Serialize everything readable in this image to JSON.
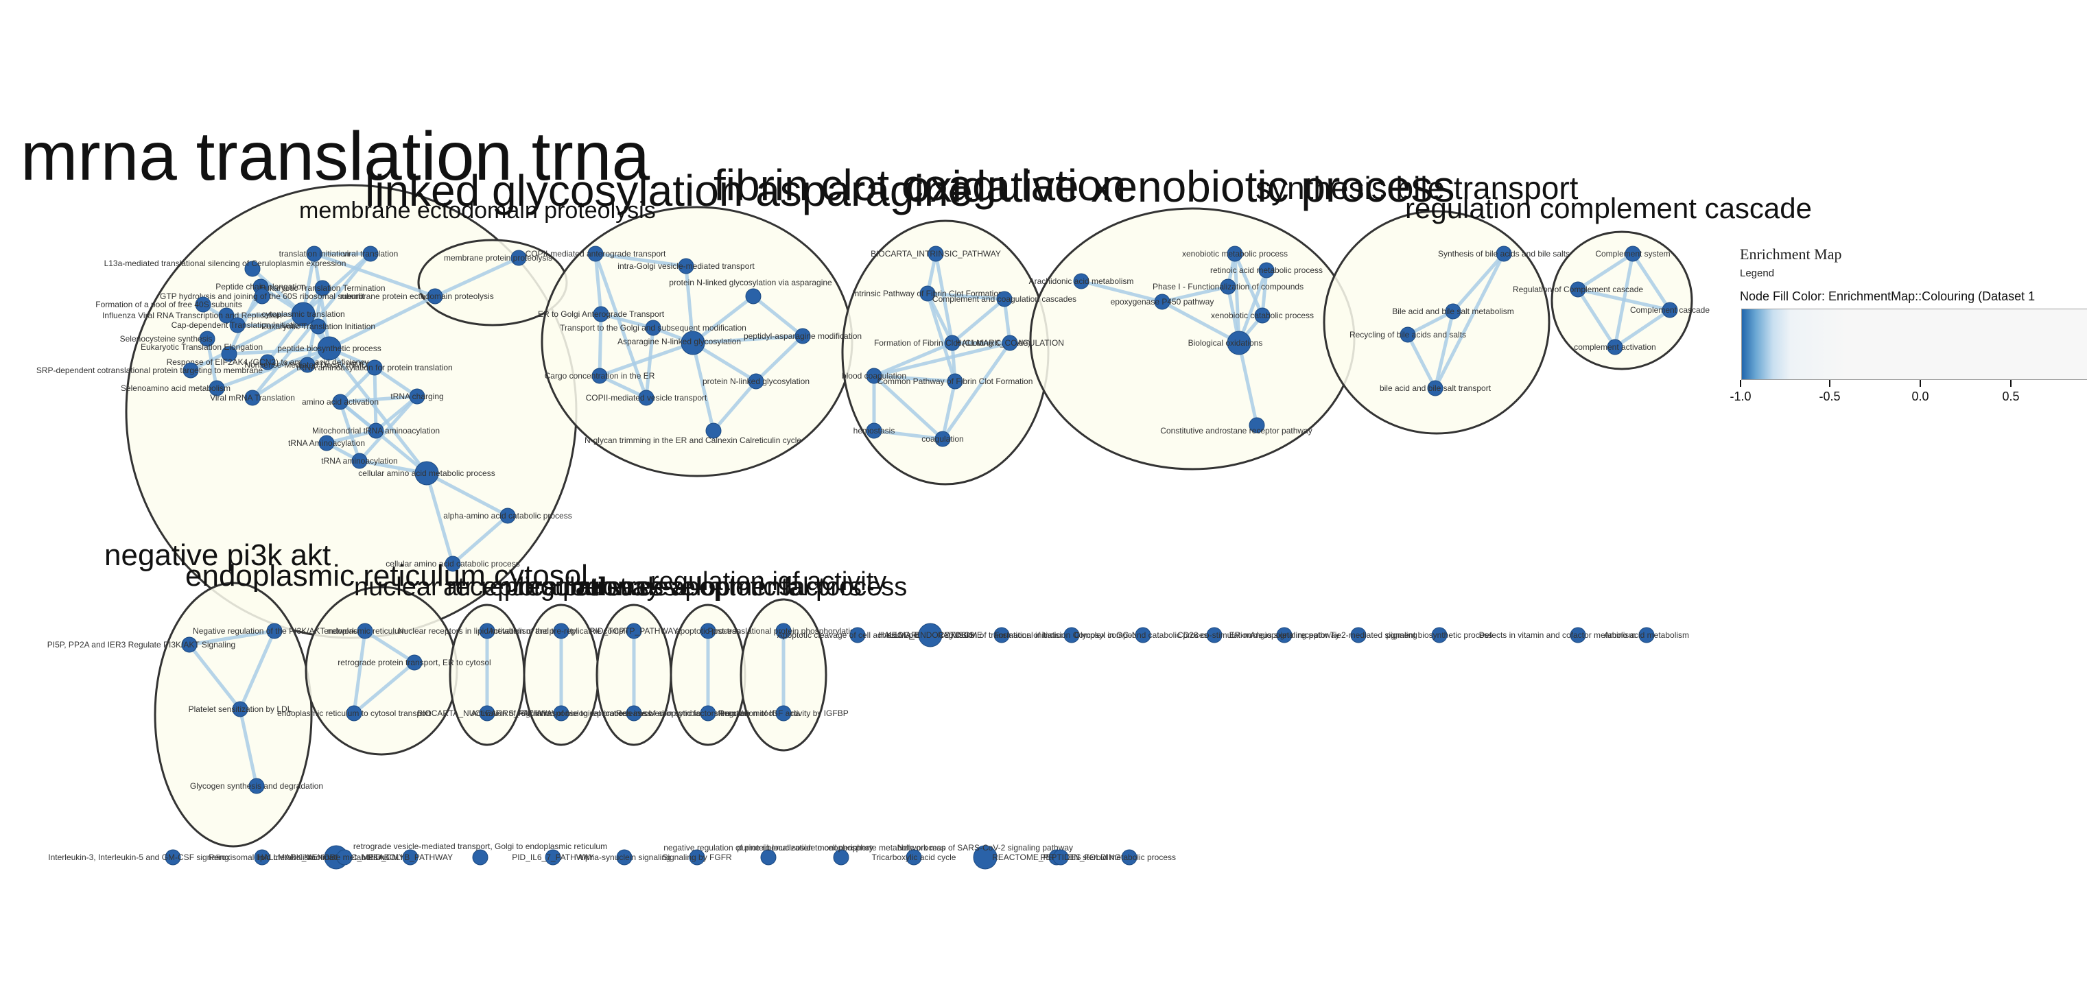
{
  "legend": {
    "title": "Enrichment Map",
    "subtitle": "Legend",
    "fill_label": "Node Fill Color:  EnrichmentMap::Colouring (Dataset 1",
    "ticks": [
      "-1.0",
      "-0.5",
      "0.0",
      "0.5"
    ]
  },
  "clusters": [
    {
      "id": "c1",
      "label": "mrna translation trna"
    },
    {
      "id": "c2",
      "label": "membrane ectodomain proteolysis"
    },
    {
      "id": "c3",
      "label": "linked glycosylation asparagine"
    },
    {
      "id": "c4",
      "label": "fibrin clot coagulation"
    },
    {
      "id": "c5",
      "label": "oxidative xenobiotic process"
    },
    {
      "id": "c6",
      "label": "synthesis bile transport"
    },
    {
      "id": "c7",
      "label": "regulation complement cascade"
    },
    {
      "id": "c8",
      "label": "negative pi3k akt"
    },
    {
      "id": "c9",
      "label": "endoplasmic reticulum cytosol"
    },
    {
      "id": "c10",
      "label": "nuclear receptors pathway"
    },
    {
      "id": "c11",
      "label": "atr replication stress"
    },
    {
      "id": "c12",
      "label": "regulation developmental process"
    },
    {
      "id": "c13",
      "label": "release apoptotic factors"
    },
    {
      "id": "c14",
      "label": "regulation igf activity"
    }
  ],
  "nodes": [
    {
      "id": "n1",
      "label": "translation initiation",
      "c": "c1",
      "s": 1
    },
    {
      "id": "n2",
      "label": "viral translation",
      "c": "c1",
      "s": 1
    },
    {
      "id": "n3",
      "label": "L13a-mediated translational silencing of Ceruloplasmin expression",
      "c": "c1",
      "s": 1
    },
    {
      "id": "n4",
      "label": "Peptide chain elongation",
      "c": "c1",
      "s": 1
    },
    {
      "id": "n5",
      "label": "Eukaryotic Translation Termination",
      "c": "c1",
      "s": 1
    },
    {
      "id": "n6",
      "label": "GTP hydrolysis and joining of the 60S ribosomal subunit",
      "c": "c1",
      "s": 1
    },
    {
      "id": "n7",
      "label": "Formation of a pool of free 40S subunits",
      "c": "c1",
      "s": 1
    },
    {
      "id": "n8",
      "label": "Influenza Viral RNA Transcription and Replication",
      "c": "c1",
      "s": 1
    },
    {
      "id": "n9",
      "label": "cytoplasmic translation",
      "c": "c1",
      "s": 2
    },
    {
      "id": "n10",
      "label": "Cap-dependent Translation Initiation",
      "c": "c1",
      "s": 1
    },
    {
      "id": "n11",
      "label": "Eukaryotic Translation Initiation",
      "c": "c1",
      "s": 1
    },
    {
      "id": "n12",
      "label": "Selenocysteine synthesis",
      "c": "c1",
      "s": 1
    },
    {
      "id": "n13",
      "label": "peptide biosynthetic process",
      "c": "c1",
      "s": 2
    },
    {
      "id": "n14",
      "label": "Eukaryotic Translation Elongation",
      "c": "c1",
      "s": 1
    },
    {
      "id": "n15",
      "label": "Response of EIF2AK4 (GCN2) to amino acid deficiency",
      "c": "c1",
      "s": 1
    },
    {
      "id": "n16",
      "label": "SRP-dependent cotranslational protein targeting to membrane",
      "c": "c1",
      "s": 1
    },
    {
      "id": "n17",
      "label": "Nonsense-Mediated Decay (NMD)",
      "c": "c1",
      "s": 1
    },
    {
      "id": "n18",
      "label": "Selenoamino acid metabolism",
      "c": "c1",
      "s": 1
    },
    {
      "id": "n19",
      "label": "Viral mRNA Translation",
      "c": "c1",
      "s": 1
    },
    {
      "id": "n20",
      "label": "tRNA aminoacylation for protein translation",
      "c": "c1",
      "s": 1
    },
    {
      "id": "n21",
      "label": "amino acid activation",
      "c": "c1",
      "s": 1
    },
    {
      "id": "n22",
      "label": "tRNA charging",
      "c": "c1",
      "s": 1
    },
    {
      "id": "n23",
      "label": "Mitochondrial tRNA aminoacylation",
      "c": "c1",
      "s": 1
    },
    {
      "id": "n24",
      "label": "tRNA Aminoacylation",
      "c": "c1",
      "s": 1
    },
    {
      "id": "n25",
      "label": "tRNA aminoacylation",
      "c": "c1",
      "s": 1
    },
    {
      "id": "n26",
      "label": "cellular amino acid metabolic process",
      "c": "c1",
      "s": 2
    },
    {
      "id": "n27",
      "label": "alpha-amino acid catabolic process",
      "c": "c1",
      "s": 1
    },
    {
      "id": "n28",
      "label": "cellular amino acid catabolic process",
      "c": "c1",
      "s": 1
    },
    {
      "id": "n29",
      "label": "membrane protein proteolysis",
      "c": "c2",
      "s": 1
    },
    {
      "id": "n30",
      "label": "membrane protein ectodomain proteolysis",
      "c": "c2",
      "s": 1
    },
    {
      "id": "n31",
      "label": "COPII-mediated anterograde transport",
      "c": "c3",
      "s": 1
    },
    {
      "id": "n32",
      "label": "intra-Golgi vesicle-mediated transport",
      "c": "c3",
      "s": 1
    },
    {
      "id": "n33",
      "label": "protein N-linked glycosylation via asparagine",
      "c": "c3",
      "s": 1
    },
    {
      "id": "n34",
      "label": "ER to Golgi Anterograde Transport",
      "c": "c3",
      "s": 1
    },
    {
      "id": "n35",
      "label": "Transport to the Golgi and subsequent modification",
      "c": "c3",
      "s": 1
    },
    {
      "id": "n36",
      "label": "Asparagine N-linked glycosylation",
      "c": "c3",
      "s": 2
    },
    {
      "id": "n37",
      "label": "peptidyl-asparagine modification",
      "c": "c3",
      "s": 1
    },
    {
      "id": "n38",
      "label": "Cargo concentration in the ER",
      "c": "c3",
      "s": 1
    },
    {
      "id": "n39",
      "label": "protein N-linked glycosylation",
      "c": "c3",
      "s": 1
    },
    {
      "id": "n40",
      "label": "COPII-mediated vesicle transport",
      "c": "c3",
      "s": 1
    },
    {
      "id": "n41",
      "label": "N-glycan trimming in the ER and Calnexin Calreticulin cycle",
      "c": "c3",
      "s": 1
    },
    {
      "id": "n42",
      "label": "BIOCARTA_INTRINSIC_PATHWAY",
      "c": "c4",
      "s": 1
    },
    {
      "id": "n43",
      "label": "Intrinsic Pathway of Fibrin Clot Formation",
      "c": "c4",
      "s": 1
    },
    {
      "id": "n44",
      "label": "Complement and coagulation cascades",
      "c": "c4",
      "s": 1
    },
    {
      "id": "n45",
      "label": "Formation of Fibrin Clot (Clotting Cascade)",
      "c": "c4",
      "s": 1
    },
    {
      "id": "n46",
      "label": "HALLMARK_COAGULATION",
      "c": "c4",
      "s": 1
    },
    {
      "id": "n47",
      "label": "blood coagulation",
      "c": "c4",
      "s": 1
    },
    {
      "id": "n48",
      "label": "Common Pathway of Fibrin Clot Formation",
      "c": "c4",
      "s": 1
    },
    {
      "id": "n49",
      "label": "hemostasis",
      "c": "c4",
      "s": 1
    },
    {
      "id": "n50",
      "label": "coagulation",
      "c": "c4",
      "s": 1
    },
    {
      "id": "n51",
      "label": "xenobiotic metabolic process",
      "c": "c5",
      "s": 1
    },
    {
      "id": "n52",
      "label": "Arachidonic acid metabolism",
      "c": "c5",
      "s": 1
    },
    {
      "id": "n53",
      "label": "Phase I - Functionalization of compounds",
      "c": "c5",
      "s": 1
    },
    {
      "id": "n54",
      "label": "retinoic acid metabolic process",
      "c": "c5",
      "s": 1
    },
    {
      "id": "n55",
      "label": "epoxygenase P450 pathway",
      "c": "c5",
      "s": 1
    },
    {
      "id": "n56",
      "label": "xenobiotic catabolic process",
      "c": "c5",
      "s": 1
    },
    {
      "id": "n57",
      "label": "Biological oxidations",
      "c": "c5",
      "s": 2
    },
    {
      "id": "n58",
      "label": "Constitutive androstane receptor pathway",
      "c": "c5",
      "s": 1
    },
    {
      "id": "n59",
      "label": "Synthesis of bile acids and bile salts",
      "c": "c6",
      "s": 1
    },
    {
      "id": "n60",
      "label": "Bile acid and bile salt metabolism",
      "c": "c6",
      "s": 1
    },
    {
      "id": "n61",
      "label": "Recycling of bile acids and salts",
      "c": "c6",
      "s": 1
    },
    {
      "id": "n62",
      "label": "bile acid and bile salt transport",
      "c": "c6",
      "s": 1
    },
    {
      "id": "n63",
      "label": "Complement system",
      "c": "c7",
      "s": 1
    },
    {
      "id": "n64",
      "label": "Regulation of Complement cascade",
      "c": "c7",
      "s": 1
    },
    {
      "id": "n65",
      "label": "Complement cascade",
      "c": "c7",
      "s": 1
    },
    {
      "id": "n66",
      "label": "complement activation",
      "c": "c7",
      "s": 1
    },
    {
      "id": "n67",
      "label": "Negative regulation of the PI3K/AKT network",
      "c": "c8",
      "s": 1
    },
    {
      "id": "n68",
      "label": "PI5P, PP2A and IER3 Regulate PI3K/AKT Signaling",
      "c": "c8",
      "s": 1
    },
    {
      "id": "n69",
      "label": "Platelet sensitization by LDL",
      "c": "c8",
      "s": 1
    },
    {
      "id": "n70",
      "label": "Glycogen synthesis and degradation",
      "c": "c8",
      "s": 1
    },
    {
      "id": "n71",
      "label": "endoplasmic reticulum",
      "c": "c9",
      "s": 1
    },
    {
      "id": "n72",
      "label": "retrograde protein transport, ER to cytosol",
      "c": "c9",
      "s": 1
    },
    {
      "id": "n73",
      "label": "endoplasmic reticulum to cytosol transport",
      "c": "c9",
      "s": 1
    },
    {
      "id": "n74",
      "label": "Nuclear receptors in lipid metabolism and toxicity",
      "c": "c10",
      "s": 1
    },
    {
      "id": "n75",
      "label": "BIOCARTA_NUCLEARRS_PATHWAY",
      "c": "c10",
      "s": 1
    },
    {
      "id": "n76",
      "label": "Activation of the pre-replicative complex",
      "c": "c11",
      "s": 1
    },
    {
      "id": "n77",
      "label": "Activation of ATR in response to replication stress",
      "c": "c11",
      "s": 1
    },
    {
      "id": "n78",
      "label": "PID_TCPTP_PATHWAY",
      "c": "c12",
      "s": 1
    },
    {
      "id": "n79",
      "label": "regulation of biological process involved in symbiotic interaction",
      "c": "c12",
      "s": 1
    },
    {
      "id": "n80",
      "label": "apoptotic process",
      "c": "c13",
      "s": 1
    },
    {
      "id": "n81",
      "label": "Release of apoptotic factors from the mitochondria",
      "c": "c13",
      "s": 1
    },
    {
      "id": "n82",
      "label": "Post-translational protein phosphorylation",
      "c": "c14",
      "s": 1
    },
    {
      "id": "n83",
      "label": "Regulation of IGF activity by IGFBP",
      "c": "c14",
      "s": 1
    },
    {
      "id": "n84",
      "label": "Apoptotic cleavage of cell adhesion proteins",
      "c": "",
      "s": 1
    },
    {
      "id": "n85",
      "label": "HALLMARK_PEROXISOME",
      "c": "",
      "s": 1
    },
    {
      "id": "n86",
      "label": "KEGG_ENDOCYTOSIS",
      "c": "",
      "s": 2
    },
    {
      "id": "n87",
      "label": "Regulation of translational initiation",
      "c": "",
      "s": 1
    },
    {
      "id": "n88",
      "label": "Formation of Incision Complex in GG-NER",
      "c": "",
      "s": 1
    },
    {
      "id": "n89",
      "label": "Glycosyl compound catabolic process",
      "c": "",
      "s": 1
    },
    {
      "id": "n90",
      "label": "CD28 co-stimulation",
      "c": "",
      "s": 1
    },
    {
      "id": "n91",
      "label": "ER-nucleus signaling pathway",
      "c": "",
      "s": 1
    },
    {
      "id": "n92",
      "label": "Angiopoietin receptor Tie2-mediated signaling",
      "c": "",
      "s": 1
    },
    {
      "id": "n93",
      "label": "pigment biosynthetic process",
      "c": "",
      "s": 1
    },
    {
      "id": "n94",
      "label": "Defects in vitamin and cofactor metabolism",
      "c": "",
      "s": 1
    },
    {
      "id": "n95",
      "label": "Amino acid metabolism",
      "c": "",
      "s": 1
    },
    {
      "id": "n96",
      "label": "Interleukin-3, Interleukin-5 and GM-CSF signaling",
      "c": "",
      "s": 1
    },
    {
      "id": "n97",
      "label": "Peroxisomal lipid metabolism",
      "c": "",
      "s": 1
    },
    {
      "id": "n98",
      "label": "HALLMARK_XENOBIOTIC_METABOLISM",
      "c": "",
      "s": 2
    },
    {
      "id": "n99",
      "label": "PID_CMYB_PATHWAY",
      "c": "",
      "s": 1
    },
    {
      "id": "n100",
      "label": "Nicotinate metabolism",
      "c": "",
      "s": 1
    },
    {
      "id": "n101",
      "label": "retrograde vesicle-mediated transport, Golgi to endoplasmic reticulum",
      "c": "",
      "s": 1
    },
    {
      "id": "n102",
      "label": "PID_IL6_7_PATHWAY",
      "c": "",
      "s": 1
    },
    {
      "id": "n103",
      "label": "Alpha-synuclein signaling",
      "c": "",
      "s": 1
    },
    {
      "id": "n104",
      "label": "Signaling by FGFR",
      "c": "",
      "s": 1
    },
    {
      "id": "n105",
      "label": "negative regulation of protein localization to cell periphery",
      "c": "",
      "s": 1
    },
    {
      "id": "n106",
      "label": "purine ribonucleoside monophosphate metabolic process",
      "c": "",
      "s": 1
    },
    {
      "id": "n107",
      "label": "Tricarboxylic acid cycle",
      "c": "",
      "s": 1
    },
    {
      "id": "n108",
      "label": "Network map of SARS-CoV-2 signaling pathway",
      "c": "",
      "s": 2
    },
    {
      "id": "n109",
      "label": "REACTOME_PROTEIN_FOLDING",
      "c": "",
      "s": 1
    },
    {
      "id": "n110",
      "label": "PEPTIDES",
      "c": "",
      "s": 1
    },
    {
      "id": "n111",
      "label": "steroid metabolic process",
      "c": "",
      "s": 1
    }
  ],
  "edges": [
    [
      "n1",
      "n2"
    ],
    [
      "n1",
      "n9"
    ],
    [
      "n1",
      "n13"
    ],
    [
      "n2",
      "n9"
    ],
    [
      "n3",
      "n9"
    ],
    [
      "n4",
      "n9"
    ],
    [
      "n5",
      "n9"
    ],
    [
      "n6",
      "n10"
    ],
    [
      "n7",
      "n10"
    ],
    [
      "n8",
      "n9"
    ],
    [
      "n9",
      "n13"
    ],
    [
      "n10",
      "n11"
    ],
    [
      "n11",
      "n13"
    ],
    [
      "n12",
      "n18"
    ],
    [
      "n14",
      "n13"
    ],
    [
      "n15",
      "n9"
    ],
    [
      "n16",
      "n9"
    ],
    [
      "n17",
      "n13"
    ],
    [
      "n19",
      "n13"
    ],
    [
      "n18",
      "n13"
    ],
    [
      "n4",
      "n14"
    ],
    [
      "n5",
      "n17"
    ],
    [
      "n2",
      "n19"
    ],
    [
      "n13",
      "n20"
    ],
    [
      "n20",
      "n21"
    ],
    [
      "n20",
      "n22"
    ],
    [
      "n21",
      "n22"
    ],
    [
      "n21",
      "n23"
    ],
    [
      "n20",
      "n23"
    ],
    [
      "n22",
      "n23"
    ],
    [
      "n23",
      "n24"
    ],
    [
      "n24",
      "n25"
    ],
    [
      "n21",
      "n25"
    ],
    [
      "n22",
      "n25"
    ],
    [
      "n25",
      "n26"
    ],
    [
      "n21",
      "n26"
    ],
    [
      "n26",
      "n27"
    ],
    [
      "n27",
      "n28"
    ],
    [
      "n26",
      "n28"
    ],
    [
      "n13",
      "n26"
    ],
    [
      "n29",
      "n30"
    ],
    [
      "n1",
      "n30"
    ],
    [
      "n13",
      "n30"
    ],
    [
      "n31",
      "n32"
    ],
    [
      "n31",
      "n34"
    ],
    [
      "n34",
      "n35"
    ],
    [
      "n35",
      "n36"
    ],
    [
      "n32",
      "n36"
    ],
    [
      "n33",
      "n36"
    ],
    [
      "n36",
      "n37"
    ],
    [
      "n33",
      "n37"
    ],
    [
      "n36",
      "n38"
    ],
    [
      "n34",
      "n38"
    ],
    [
      "n36",
      "n39"
    ],
    [
      "n37",
      "n39"
    ],
    [
      "n38",
      "n40"
    ],
    [
      "n31",
      "n40"
    ],
    [
      "n36",
      "n41"
    ],
    [
      "n39",
      "n41"
    ],
    [
      "n35",
      "n40"
    ],
    [
      "n42",
      "n43"
    ],
    [
      "n42",
      "n45"
    ],
    [
      "n43",
      "n45"
    ],
    [
      "n44",
      "n45"
    ],
    [
      "n45",
      "n46"
    ],
    [
      "n45",
      "n47"
    ],
    [
      "n45",
      "n48"
    ],
    [
      "n43",
      "n48"
    ],
    [
      "n47",
      "n49"
    ],
    [
      "n47",
      "n50"
    ],
    [
      "n49",
      "n50"
    ],
    [
      "n48",
      "n50"
    ],
    [
      "n46",
      "n47"
    ],
    [
      "n44",
      "n46"
    ],
    [
      "n43",
      "n44"
    ],
    [
      "n48",
      "n47"
    ],
    [
      "n46",
      "n50"
    ],
    [
      "n52",
      "n55"
    ],
    [
      "n53",
      "n55"
    ],
    [
      "n51",
      "n53"
    ],
    [
      "n53",
      "n57"
    ],
    [
      "n51",
      "n57"
    ],
    [
      "n54",
      "n57"
    ],
    [
      "n56",
      "n57"
    ],
    [
      "n54",
      "n56"
    ],
    [
      "n51",
      "n56"
    ],
    [
      "n57",
      "n58"
    ],
    [
      "n55",
      "n57"
    ],
    [
      "n59",
      "n60"
    ],
    [
      "n60",
      "n61"
    ],
    [
      "n60",
      "n62"
    ],
    [
      "n61",
      "n62"
    ],
    [
      "n59",
      "n62"
    ],
    [
      "n63",
      "n64"
    ],
    [
      "n63",
      "n65"
    ],
    [
      "n64",
      "n65"
    ],
    [
      "n65",
      "n66"
    ],
    [
      "n64",
      "n66"
    ],
    [
      "n63",
      "n66"
    ],
    [
      "n67",
      "n68"
    ],
    [
      "n67",
      "n69"
    ],
    [
      "n68",
      "n69"
    ],
    [
      "n69",
      "n70"
    ],
    [
      "n71",
      "n72"
    ],
    [
      "n72",
      "n73"
    ],
    [
      "n71",
      "n73"
    ],
    [
      "n74",
      "n75"
    ],
    [
      "n76",
      "n77"
    ],
    [
      "n78",
      "n79"
    ],
    [
      "n80",
      "n81"
    ],
    [
      "n82",
      "n83"
    ]
  ]
}
